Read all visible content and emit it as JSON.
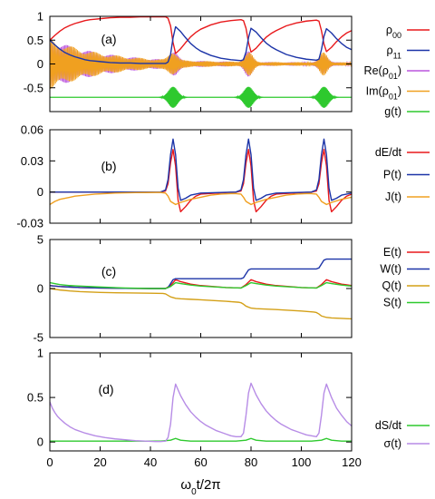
{
  "chart_data": [
    {
      "panel_label": "(a)",
      "type": "line",
      "xlim": [
        0,
        120
      ],
      "ylim": [
        -1,
        1
      ],
      "yticks": [
        {
          "value": 1,
          "label": "1"
        },
        {
          "value": 0.5,
          "label": "0.5"
        },
        {
          "value": 0,
          "label": "0"
        },
        {
          "value": -0.5,
          "label": "-0.5"
        }
      ],
      "series": [
        {
          "name": "ρ00",
          "color": "#e8191c",
          "x": [
            0,
            2,
            4,
            6,
            8,
            10,
            12,
            14,
            16,
            18,
            20,
            24,
            28,
            32,
            36,
            40,
            44,
            46,
            47,
            48,
            49,
            50,
            52,
            54,
            56,
            58,
            60,
            64,
            68,
            72,
            76,
            77,
            78,
            79,
            80,
            82,
            84,
            86,
            88,
            90,
            94,
            98,
            102,
            106,
            107,
            108,
            109,
            110,
            112,
            114,
            116,
            118,
            120
          ],
          "y": [
            0.5,
            0.6,
            0.69,
            0.76,
            0.81,
            0.85,
            0.88,
            0.91,
            0.93,
            0.94,
            0.95,
            0.97,
            0.98,
            0.98,
            0.99,
            0.99,
            0.99,
            0.99,
            0.96,
            0.8,
            0.45,
            0.22,
            0.32,
            0.45,
            0.57,
            0.66,
            0.73,
            0.82,
            0.88,
            0.91,
            0.93,
            0.91,
            0.75,
            0.45,
            0.25,
            0.33,
            0.45,
            0.56,
            0.64,
            0.7,
            0.8,
            0.86,
            0.9,
            0.92,
            0.9,
            0.7,
            0.42,
            0.26,
            0.35,
            0.47,
            0.57,
            0.65,
            0.7
          ]
        },
        {
          "name": "ρ11",
          "color": "#1c34a8",
          "x": [
            0,
            2,
            4,
            6,
            8,
            10,
            12,
            14,
            16,
            18,
            20,
            24,
            28,
            32,
            36,
            40,
            44,
            46,
            47,
            48,
            49,
            50,
            52,
            54,
            56,
            58,
            60,
            64,
            68,
            72,
            76,
            77,
            78,
            79,
            80,
            82,
            84,
            86,
            88,
            90,
            94,
            98,
            102,
            106,
            107,
            108,
            109,
            110,
            112,
            114,
            116,
            118,
            120
          ],
          "y": [
            0.5,
            0.4,
            0.31,
            0.24,
            0.19,
            0.15,
            0.12,
            0.09,
            0.07,
            0.06,
            0.05,
            0.03,
            0.02,
            0.02,
            0.01,
            0.01,
            0.01,
            0.01,
            0.04,
            0.2,
            0.55,
            0.78,
            0.68,
            0.55,
            0.43,
            0.34,
            0.27,
            0.18,
            0.12,
            0.09,
            0.07,
            0.09,
            0.25,
            0.55,
            0.75,
            0.67,
            0.55,
            0.44,
            0.36,
            0.3,
            0.2,
            0.14,
            0.1,
            0.08,
            0.1,
            0.3,
            0.58,
            0.74,
            0.65,
            0.53,
            0.43,
            0.35,
            0.3
          ]
        },
        {
          "name": "Re(ρ01)",
          "color": "#bb55dd",
          "x": [],
          "y": []
        },
        {
          "name": "Im(ρ01)",
          "color": "#f0a020",
          "x": [],
          "y": []
        },
        {
          "name": "g(t)",
          "color": "#2ec92e",
          "x": [
            0,
            120
          ],
          "y": [
            -0.7,
            -0.7
          ]
        }
      ]
    },
    {
      "panel_label": "(b)",
      "type": "line",
      "xlim": [
        0,
        120
      ],
      "ylim": [
        -0.03,
        0.06
      ],
      "yticks": [
        {
          "value": 0.06,
          "label": "0.06"
        },
        {
          "value": 0.03,
          "label": "0.03"
        },
        {
          "value": 0,
          "label": "0"
        },
        {
          "value": -0.03,
          "label": "-0.03"
        }
      ],
      "series": [
        {
          "name": "dE/dt",
          "color": "#e8191c",
          "x": [
            0,
            44,
            46,
            47,
            48,
            49,
            50,
            51,
            52,
            54,
            56,
            58,
            60,
            74,
            76,
            77,
            78,
            79,
            80,
            81,
            82,
            84,
            86,
            88,
            90,
            104,
            106,
            107,
            108,
            109,
            110,
            111,
            112,
            114,
            116,
            118,
            120
          ],
          "y": [
            0,
            0,
            0.001,
            0.008,
            0.028,
            0.041,
            0.025,
            -0.008,
            -0.019,
            -0.014,
            -0.008,
            -0.004,
            -0.002,
            0,
            0.001,
            0.008,
            0.028,
            0.041,
            0.025,
            -0.008,
            -0.019,
            -0.014,
            -0.008,
            -0.004,
            -0.002,
            0,
            0.001,
            0.008,
            0.028,
            0.041,
            0.025,
            -0.008,
            -0.019,
            -0.014,
            -0.008,
            -0.004,
            -0.002
          ]
        },
        {
          "name": "P(t)",
          "color": "#1c34a8",
          "x": [
            0,
            44,
            46,
            47,
            48,
            49,
            50,
            51,
            52,
            54,
            56,
            58,
            60,
            74,
            76,
            77,
            78,
            79,
            80,
            81,
            82,
            84,
            86,
            88,
            90,
            104,
            106,
            107,
            108,
            109,
            110,
            111,
            112,
            114,
            116,
            118,
            120
          ],
          "y": [
            0,
            0,
            0.002,
            0.012,
            0.036,
            0.051,
            0.036,
            0.004,
            -0.008,
            -0.006,
            -0.003,
            -0.002,
            -0.001,
            0,
            0.002,
            0.012,
            0.036,
            0.051,
            0.036,
            0.004,
            -0.008,
            -0.006,
            -0.003,
            -0.002,
            -0.001,
            0,
            0.002,
            0.012,
            0.036,
            0.051,
            0.036,
            0.004,
            -0.008,
            -0.006,
            -0.003,
            -0.002,
            -0.001
          ]
        },
        {
          "name": "J(t)",
          "color": "#f0a020",
          "x": [
            0,
            2,
            4,
            6,
            8,
            10,
            14,
            18,
            22,
            26,
            30,
            34,
            38,
            42,
            44,
            46,
            47,
            48,
            50,
            52,
            56,
            60,
            64,
            68,
            72,
            74,
            76,
            77,
            78,
            80,
            82,
            86,
            90,
            94,
            98,
            102,
            104,
            106,
            107,
            108,
            110,
            112,
            116,
            120
          ],
          "y": [
            -0.012,
            -0.009,
            -0.007,
            -0.006,
            -0.005,
            -0.004,
            -0.003,
            -0.002,
            -0.0015,
            -0.001,
            -0.0008,
            -0.0006,
            -0.0005,
            -0.0004,
            -0.0004,
            -0.001,
            -0.004,
            -0.009,
            -0.012,
            -0.01,
            -0.007,
            -0.005,
            -0.003,
            -0.002,
            -0.0015,
            -0.0015,
            -0.002,
            -0.005,
            -0.009,
            -0.012,
            -0.01,
            -0.007,
            -0.005,
            -0.003,
            -0.002,
            -0.0015,
            -0.0015,
            -0.002,
            -0.005,
            -0.009,
            -0.012,
            -0.01,
            -0.007,
            -0.005
          ]
        }
      ]
    },
    {
      "panel_label": "(c)",
      "type": "line",
      "xlim": [
        0,
        120
      ],
      "ylim": [
        -5,
        5
      ],
      "yticks": [
        {
          "value": 5,
          "label": "5"
        },
        {
          "value": 0,
          "label": "0"
        },
        {
          "value": -5,
          "label": "-5"
        }
      ],
      "series": [
        {
          "name": "E(t)",
          "color": "#e8191c",
          "x": [
            0,
            4,
            8,
            12,
            20,
            30,
            40,
            46,
            48,
            50,
            52,
            56,
            60,
            70,
            76,
            78,
            80,
            82,
            86,
            90,
            100,
            106,
            108,
            110,
            112,
            116,
            120
          ],
          "y": [
            0.3,
            0.2,
            0.15,
            0.1,
            0.05,
            0.02,
            0,
            0,
            0.3,
            0.9,
            0.7,
            0.45,
            0.3,
            0.1,
            0.05,
            0.4,
            0.9,
            0.7,
            0.45,
            0.3,
            0.1,
            0.05,
            0.4,
            0.9,
            0.7,
            0.45,
            0.3
          ]
        },
        {
          "name": "W(t)",
          "color": "#1c34a8",
          "x": [
            0,
            4,
            8,
            12,
            20,
            30,
            40,
            46,
            47,
            48,
            49,
            50,
            52,
            60,
            70,
            76,
            77,
            78,
            79,
            80,
            82,
            90,
            100,
            106,
            107,
            108,
            109,
            110,
            112,
            120
          ],
          "y": [
            0.3,
            0.2,
            0.15,
            0.1,
            0.05,
            0.02,
            0,
            0,
            0.1,
            0.5,
            0.9,
            1.0,
            1.0,
            1.0,
            1.0,
            1.0,
            1.1,
            1.5,
            1.9,
            2.0,
            2.0,
            2.0,
            2.0,
            2.0,
            2.1,
            2.5,
            2.9,
            3.0,
            3.0,
            3.0
          ]
        },
        {
          "name": "Q(t)",
          "color": "#d4a017",
          "x": [
            0,
            4,
            8,
            12,
            20,
            30,
            40,
            45,
            46,
            47,
            48,
            50,
            52,
            56,
            60,
            70,
            75,
            76,
            77,
            78,
            80,
            82,
            86,
            90,
            100,
            105,
            106,
            107,
            108,
            110,
            112,
            116,
            120
          ],
          "y": [
            0,
            -0.15,
            -0.25,
            -0.32,
            -0.4,
            -0.45,
            -0.48,
            -0.5,
            -0.55,
            -0.7,
            -0.85,
            -1.0,
            -1.05,
            -1.1,
            -1.15,
            -1.3,
            -1.4,
            -1.45,
            -1.6,
            -1.8,
            -2.0,
            -2.05,
            -2.1,
            -2.15,
            -2.3,
            -2.4,
            -2.45,
            -2.6,
            -2.8,
            -2.95,
            -3.0,
            -3.05,
            -3.1
          ]
        },
        {
          "name": "S(t)",
          "color": "#2ec92e",
          "x": [
            0,
            4,
            8,
            12,
            20,
            30,
            40,
            46,
            48,
            50,
            52,
            56,
            60,
            70,
            76,
            78,
            80,
            82,
            86,
            90,
            100,
            106,
            108,
            110,
            112,
            116,
            120
          ],
          "y": [
            0.6,
            0.4,
            0.3,
            0.25,
            0.15,
            0.05,
            0,
            0,
            0.2,
            0.6,
            0.5,
            0.35,
            0.25,
            0.1,
            0.05,
            0.3,
            0.6,
            0.5,
            0.35,
            0.25,
            0.1,
            0.05,
            0.3,
            0.6,
            0.5,
            0.35,
            0.25
          ]
        }
      ]
    },
    {
      "panel_label": "(d)",
      "type": "line",
      "xlim": [
        0,
        120
      ],
      "ylim": [
        -0.1,
        1
      ],
      "xticks": [
        {
          "value": 0,
          "label": "0"
        },
        {
          "value": 20,
          "label": "20"
        },
        {
          "value": 40,
          "label": "40"
        },
        {
          "value": 60,
          "label": "60"
        },
        {
          "value": 80,
          "label": "80"
        },
        {
          "value": 100,
          "label": "100"
        },
        {
          "value": 120,
          "label": "120"
        }
      ],
      "yticks": [
        {
          "value": 1,
          "label": "1"
        },
        {
          "value": 0.5,
          "label": "0.5"
        },
        {
          "value": 0,
          "label": "0"
        }
      ],
      "xlabel": "ω0t/2π",
      "series": [
        {
          "name": "dS/dt",
          "color": "#2ec92e",
          "x": [
            0,
            44,
            48,
            50,
            52,
            56,
            60,
            74,
            78,
            80,
            82,
            86,
            90,
            104,
            108,
            110,
            112,
            116,
            120
          ],
          "y": [
            0.01,
            0.01,
            0.02,
            0.04,
            0.02,
            0.01,
            0.01,
            0.01,
            0.02,
            0.04,
            0.02,
            0.01,
            0.01,
            0.01,
            0.02,
            0.04,
            0.02,
            0.01,
            0.01
          ]
        },
        {
          "name": "σ(t)",
          "color": "#b78ce6",
          "x": [
            0,
            1,
            2,
            3,
            4,
            6,
            8,
            10,
            14,
            18,
            22,
            26,
            30,
            34,
            38,
            42,
            44,
            46,
            47,
            48,
            49,
            50,
            52,
            54,
            56,
            58,
            60,
            62,
            64,
            66,
            68,
            70,
            72,
            74,
            76,
            77,
            78,
            79,
            80,
            82,
            84,
            86,
            88,
            90,
            92,
            94,
            96,
            98,
            100,
            102,
            104,
            106,
            107,
            108,
            109,
            110,
            112,
            114,
            116,
            118,
            120
          ],
          "y": [
            0.45,
            0.38,
            0.33,
            0.29,
            0.26,
            0.21,
            0.17,
            0.14,
            0.1,
            0.07,
            0.05,
            0.035,
            0.025,
            0.015,
            0.01,
            0.005,
            0.005,
            0.01,
            0.05,
            0.2,
            0.5,
            0.65,
            0.52,
            0.42,
            0.34,
            0.28,
            0.23,
            0.19,
            0.16,
            0.13,
            0.11,
            0.09,
            0.07,
            0.06,
            0.06,
            0.1,
            0.3,
            0.55,
            0.66,
            0.53,
            0.43,
            0.35,
            0.29,
            0.24,
            0.2,
            0.17,
            0.14,
            0.12,
            0.1,
            0.08,
            0.07,
            0.06,
            0.1,
            0.3,
            0.55,
            0.65,
            0.5,
            0.38,
            0.3,
            0.23,
            0.18
          ]
        }
      ]
    }
  ]
}
